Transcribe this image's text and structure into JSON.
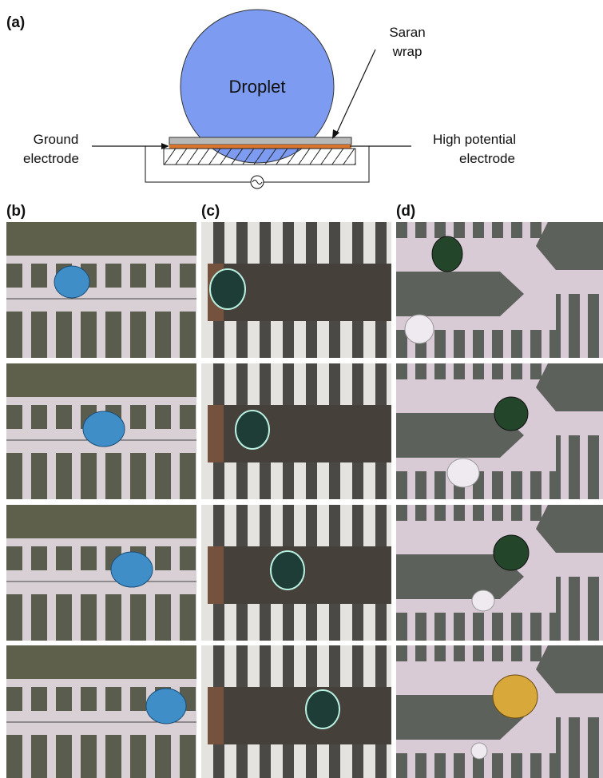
{
  "panel_a": {
    "label": "(a)",
    "droplet": "Droplet",
    "saran_wrap": [
      "Saran",
      "wrap"
    ],
    "ground_electrode": [
      "Ground",
      "electrode"
    ],
    "high_potential_electrode": [
      "High potential",
      "electrode"
    ]
  },
  "panels": [
    "(b)",
    "(c)",
    "(d)"
  ]
}
